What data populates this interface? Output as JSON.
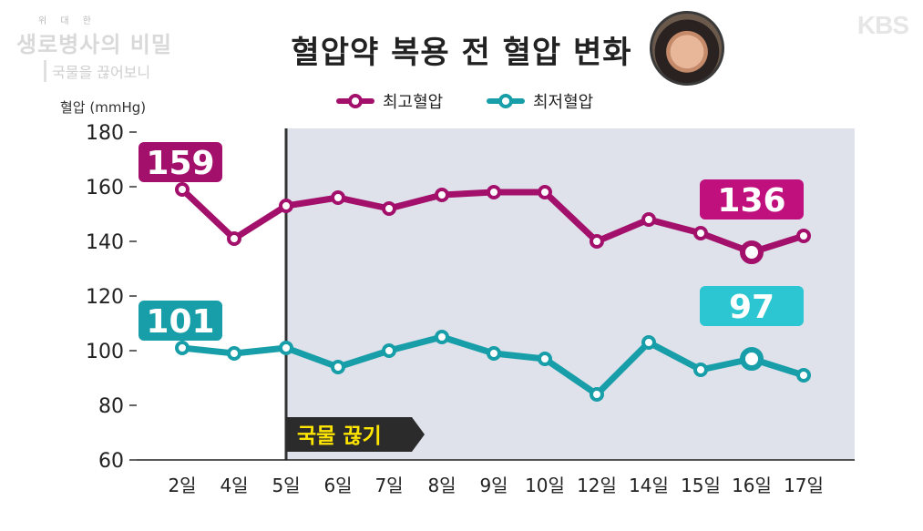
{
  "header": {
    "logo_sub": "위 대 한",
    "logo_main": "생로병사의 비밀",
    "logo_tag": "국물을 끊어보니",
    "broadcaster": "KBS",
    "title": "혈압약 복용 전 혈압 변화"
  },
  "chart_data": {
    "type": "line",
    "title": "혈압약 복용 전 혈압 변화",
    "xlabel": "",
    "ylabel": "혈압 (mmHg)",
    "ylim": [
      60,
      180
    ],
    "yticks": [
      60,
      80,
      100,
      120,
      140,
      160,
      180
    ],
    "categories": [
      "2일",
      "4일",
      "5일",
      "6일",
      "7일",
      "8일",
      "9일",
      "10일",
      "12일",
      "14일",
      "15일",
      "16일",
      "17일"
    ],
    "series": [
      {
        "name": "최고혈압",
        "color": "#a3106b",
        "values": [
          159,
          141,
          153,
          156,
          152,
          157,
          158,
          158,
          140,
          148,
          143,
          136,
          142
        ]
      },
      {
        "name": "최저혈압",
        "color": "#179ea8",
        "values": [
          101,
          99,
          101,
          94,
          100,
          105,
          99,
          97,
          84,
          103,
          93,
          97,
          91
        ]
      }
    ],
    "legend": {
      "position": "top-center"
    },
    "callouts": [
      {
        "series": 0,
        "category": "2일",
        "text": "159",
        "bg": "#a3106b",
        "fg": "#ffffff"
      },
      {
        "series": 0,
        "category": "16일",
        "text": "136",
        "bg": "#c0107d",
        "fg": "#ffffff"
      },
      {
        "series": 1,
        "category": "2일",
        "text": "101",
        "bg": "#179ea8",
        "fg": "#ffffff"
      },
      {
        "series": 1,
        "category": "16일",
        "text": "97",
        "bg": "#2bc6d1",
        "fg": "#ffffff"
      }
    ],
    "highlight": {
      "from_category": "5일",
      "label": "국물 끊기",
      "shade": "#dfe2ea",
      "tag_bg": "#2b2b2b",
      "tag_fg": "#ffe600"
    },
    "grid": false
  }
}
